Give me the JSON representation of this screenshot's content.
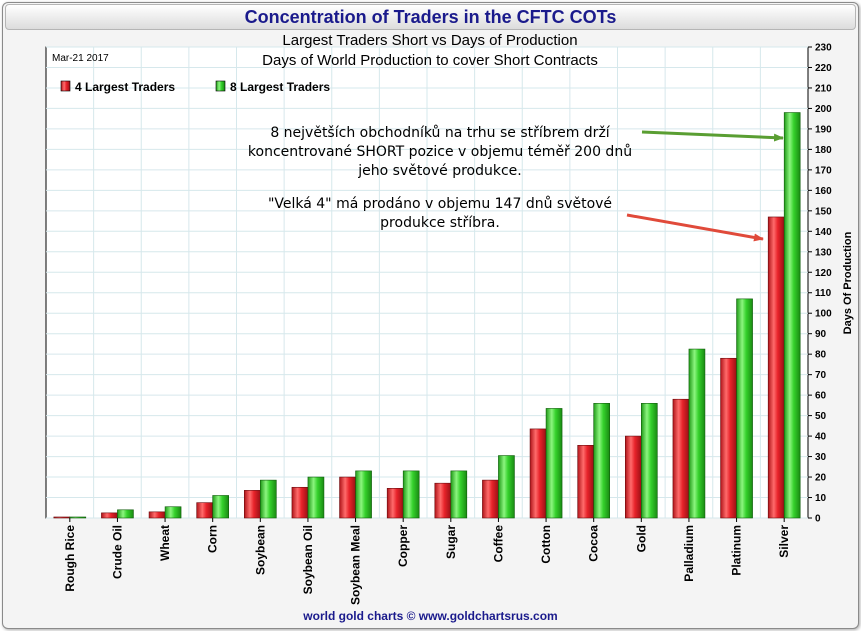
{
  "title": "Concentration of Traders in the CFTC COTs",
  "footer": "world gold charts © www.goldchartsrus.com",
  "chart_data": {
    "type": "bar",
    "title": "Concentration of Traders in the CFTC COTs",
    "subtitle": [
      "Largest Traders Short vs Days of Production",
      "Days of World Production to cover Short Contracts"
    ],
    "date": "Mar-21  2017",
    "categories": [
      "Rough Rice",
      "Crude Oil",
      "Wheat",
      "Corn",
      "Soybean",
      "Soybean Oil",
      "Soybean Meal",
      "Copper",
      "Sugar",
      "Coffee",
      "Cotton",
      "Cocoa",
      "Gold",
      "Palladium",
      "Platinum",
      "Silver"
    ],
    "series": [
      {
        "name": "4 Largest Traders",
        "color": "#e8232a",
        "values": [
          0.5,
          2.5,
          3,
          7.5,
          13.5,
          15,
          20,
          14.5,
          17,
          18.5,
          43.5,
          35.5,
          40,
          58,
          78,
          147
        ]
      },
      {
        "name": "8 Largest Traders",
        "color": "#35d12c",
        "values": [
          0.5,
          4,
          5.5,
          11,
          18.5,
          20,
          23,
          23,
          23,
          30.5,
          53.5,
          56,
          56,
          82.5,
          107,
          198
        ]
      }
    ],
    "xlabel": "",
    "ylabel": "Days Of Production",
    "ylim": [
      0,
      230
    ],
    "yticks": [
      0,
      10,
      20,
      30,
      40,
      50,
      60,
      70,
      80,
      90,
      100,
      110,
      120,
      130,
      140,
      150,
      160,
      170,
      180,
      190,
      200,
      210,
      220,
      230
    ],
    "y_axis_side": "right",
    "grid": true,
    "legend_position": "top-left",
    "annotations": [
      {
        "lines": [
          "8 největších obchodníků na trhu se stříbrem drží",
          "koncentrované SHORT pozice v objemu téměř 200 dnů",
          "jeho světové produkce."
        ],
        "arrow_color": "#5a9e32",
        "points_to": "Silver 8 Largest Traders"
      },
      {
        "lines": [
          "\"Velká 4\" má prodáno v objemu 147 dnů světové",
          "produkce stříbra."
        ],
        "arrow_color": "#e04a3a",
        "points_to": "Silver 4 Largest Traders"
      }
    ]
  }
}
